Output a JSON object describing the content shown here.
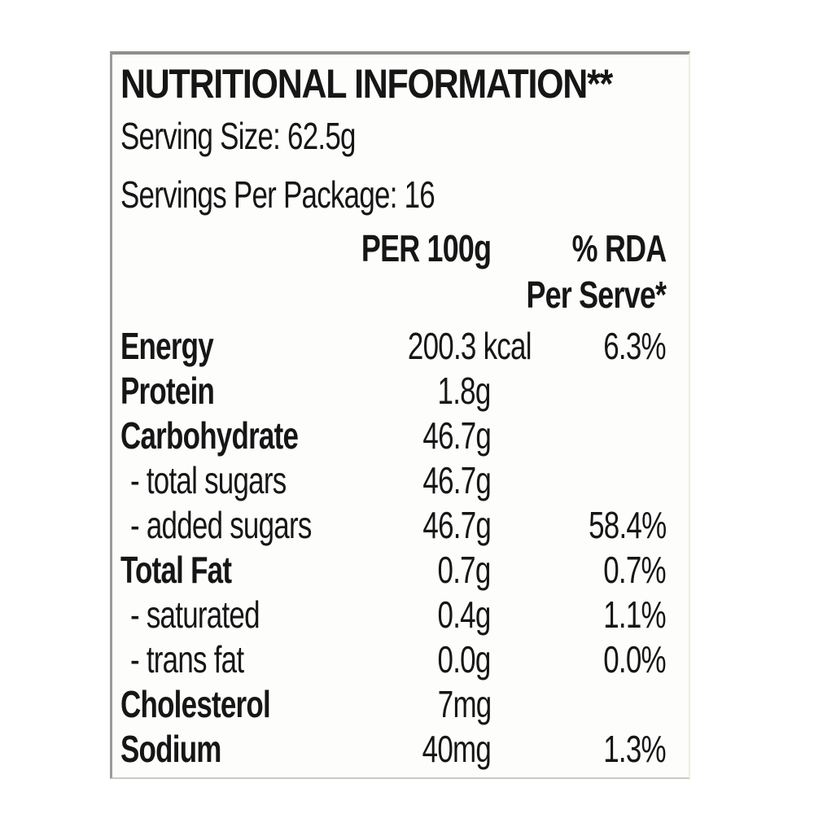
{
  "label": {
    "title": "NUTRITIONAL INFORMATION**",
    "serving_size": {
      "label": "Serving Size:",
      "value": "62.5g"
    },
    "servings_per_package": {
      "label": "Servings Per Package:",
      "value": "16"
    },
    "columns": {
      "amount": "PER 100g",
      "rda_line1": "% RDA",
      "rda_line2": "Per Serve*"
    },
    "rows": [
      {
        "name": "Energy",
        "value": "200.3 kcal",
        "rda": "6.3%",
        "bold": true
      },
      {
        "name": "Protein",
        "value": "1.8g",
        "rda": "",
        "bold": true
      },
      {
        "name": "Carbohydrate",
        "value": "46.7g",
        "rda": "",
        "bold": true
      },
      {
        "name": "- total sugars",
        "value": "46.7g",
        "rda": "",
        "bold": false
      },
      {
        "name": "- added sugars",
        "value": "46.7g",
        "rda": "58.4%",
        "bold": false
      },
      {
        "name": "Total Fat",
        "value": "0.7g",
        "rda": "0.7%",
        "bold": true
      },
      {
        "name": "- saturated",
        "value": "0.4g",
        "rda": "1.1%",
        "bold": false
      },
      {
        "name": "- trans fat",
        "value": "0.0g",
        "rda": "0.0%",
        "bold": false
      },
      {
        "name": "Cholesterol",
        "value": "7mg",
        "rda": "",
        "bold": true
      },
      {
        "name": "Sodium",
        "value": "40mg",
        "rda": "1.3%",
        "bold": true
      }
    ],
    "colors": {
      "text": "#161616",
      "border_dark": "#8f8f8f",
      "border_light": "#eeeee0",
      "background": "#fdfdfc"
    }
  }
}
